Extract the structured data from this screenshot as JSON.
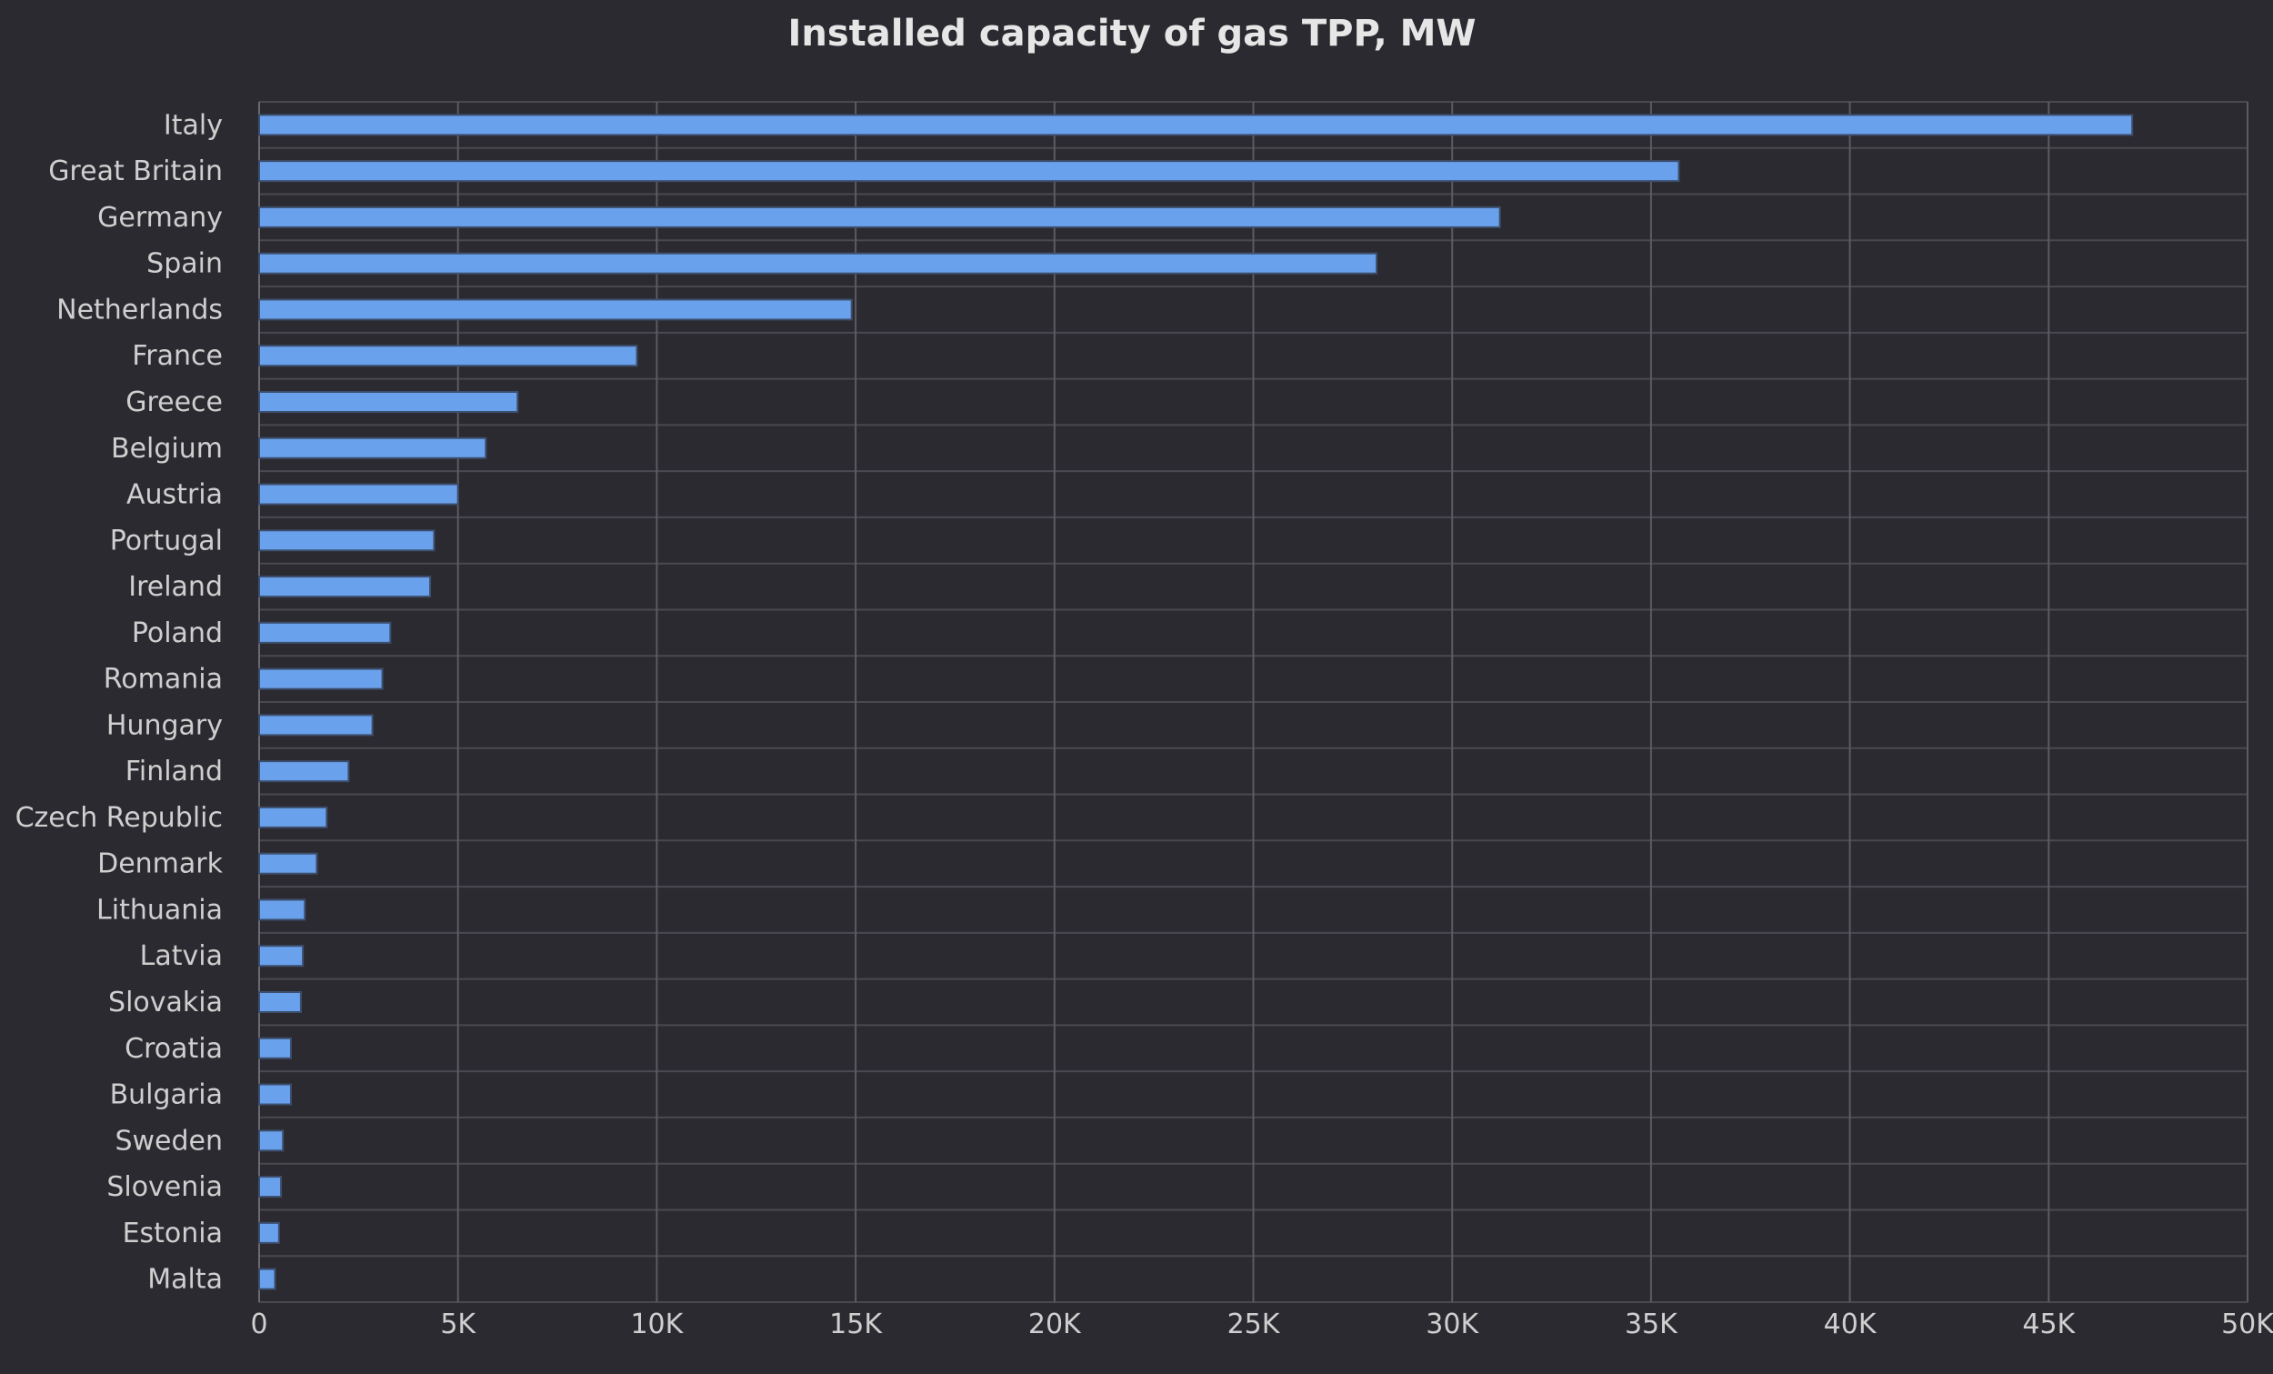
{
  "chart_data": {
    "type": "bar",
    "orientation": "horizontal",
    "title": "Installed capacity of gas TPP, MW",
    "xlabel": "",
    "ylabel": "",
    "xlim": [
      0,
      50000
    ],
    "xticks": [
      0,
      5000,
      10000,
      15000,
      20000,
      25000,
      30000,
      35000,
      40000,
      45000,
      50000
    ],
    "xtick_labels": [
      "0",
      "5K",
      "10K",
      "15K",
      "20K",
      "25K",
      "30K",
      "35K",
      "40K",
      "45K",
      "50K"
    ],
    "grid": true,
    "legend": "none",
    "categories": [
      "Italy",
      "Great Britain",
      "Germany",
      "Spain",
      "Netherlands",
      "France",
      "Greece",
      "Belgium",
      "Austria",
      "Portugal",
      "Ireland",
      "Poland",
      "Romania",
      "Hungary",
      "Finland",
      "Czech Republic",
      "Denmark",
      "Lithuania",
      "Latvia",
      "Slovakia",
      "Croatia",
      "Bulgaria",
      "Sweden",
      "Slovenia",
      "Estonia",
      "Malta"
    ],
    "values": [
      47100,
      35700,
      31200,
      28100,
      14900,
      9500,
      6500,
      5700,
      5000,
      4400,
      4300,
      3300,
      3100,
      2850,
      2250,
      1700,
      1450,
      1150,
      1100,
      1050,
      800,
      800,
      600,
      550,
      500,
      400
    ],
    "colors": {
      "bar": "#6aa1ec",
      "background": "#2b2a30"
    }
  }
}
